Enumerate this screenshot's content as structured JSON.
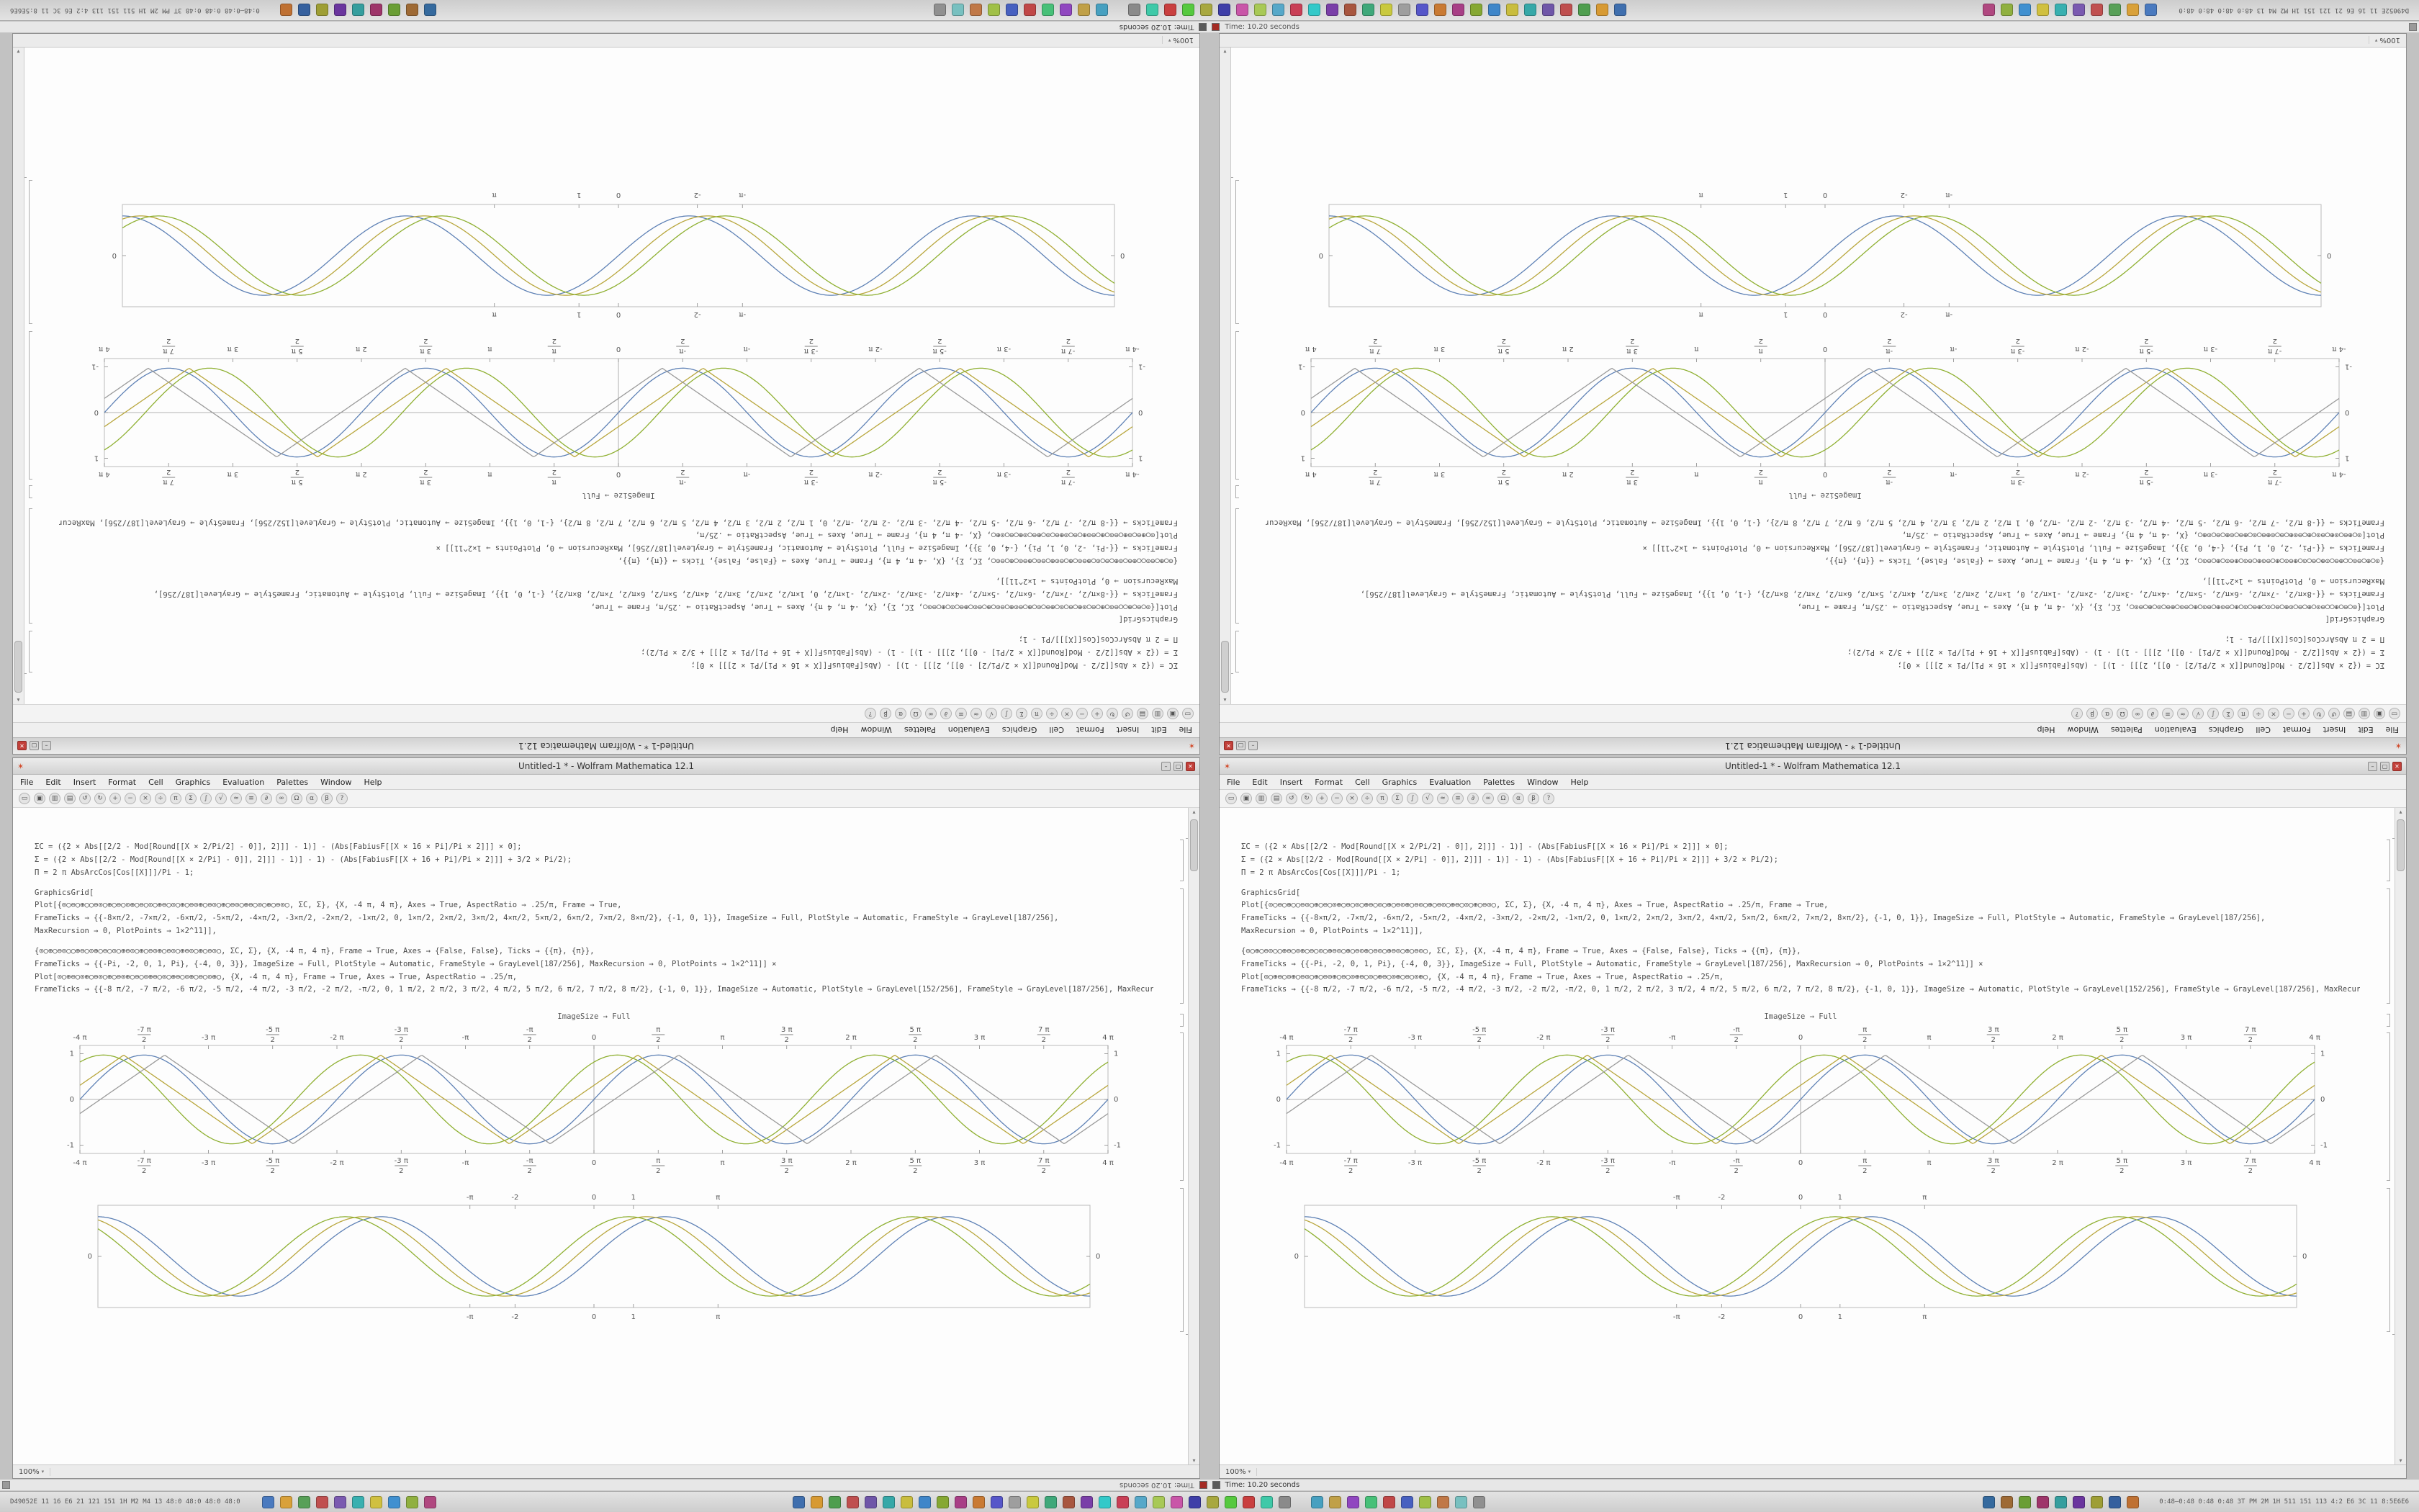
{
  "window": {
    "title": "Untitled-1 * - Wolfram Mathematica 12.1",
    "menu": [
      "File",
      "Edit",
      "Insert",
      "Format",
      "Cell",
      "Graphics",
      "Evaluation",
      "Palettes",
      "Window",
      "Help"
    ],
    "toolbar_icons": [
      "▭",
      "▣",
      "▥",
      "▤",
      "↺",
      "↻",
      "+",
      "−",
      "×",
      "÷",
      "π",
      "Σ",
      "∫",
      "√",
      "≈",
      "≡",
      "∂",
      "∞",
      "Ω",
      "α",
      "β",
      "?"
    ],
    "magnification": "100%",
    "code": {
      "defs": {
        "0": "ΣC = ({2 × Abs[[2/2 - Mod[Round[[X × 2/Pi/2] - 0]], 2]]] - 1)] - (Abs[FabiusF[[X × 16 × Pi]/Pi × 2]]] × 0];",
        "1": "Σ = ({2 × Abs[[2/2 - Mod[Round[[X × 2/Pi] - 0]], 2]]] - 1)] - 1) - (Abs[FabiusF[[X + 16 + Pi]/Pi × 2]]] + 3/2 × Pi/2);",
        "2": "Π = 2 π AbsArcCos[Cos[[X]]]/Pi - 1;"
      },
      "graphicsgrid": "GraphicsGrid[",
      "cell1": {
        "0": "Plot[{⊙○⊖○⊕○○⊖⊙○⊕○⊖○⊙⊕○⊖○⊙○⊕⊖○⊙○⊕○⊖⊙⊕○⊖⊙○⊕○⊖⊙○⊕⊖○⊙○⊕○⊖⊙○, ΣC, Σ}, {X, -4 π, 4 π}, Axes → True, AspectRatio → .25/π, Frame → True,",
        "1": "FrameTicks → {{-8×π/2, -7×π/2, -6×π/2, -5×π/2, -4×π/2, -3×π/2, -2×π/2, -1×π/2, 0, 1×π/2, 2×π/2, 3×π/2, 4×π/2, 5×π/2, 6×π/2, 7×π/2, 8×π/2}, {-1, 0, 1}}, ImageSize → Full, PlotStyle → Automatic, FrameStyle → GrayLevel[187/256],",
        "2": "MaxRecursion → 0, PlotPoints → 1×2^11]],"
      },
      "cell2": {
        "0": "{⊙○⊕○⊖⊙○○⊕⊖○⊙⊕○⊖○⊙○⊕⊖⊙○⊕○⊖⊙⊕○⊖⊙○⊕⊖⊙○⊕○⊖⊙○, ΣC, Σ}, {X, -4 π, 4 π}, Frame → True, Axes → {False, False}, Ticks → {{π}, {π}},",
        "1": "FrameTicks → {{-Pi, -2, 0, 1, Pi}, {-4, 0, 3}}, ImageSize → Full, PlotStyle → Automatic, FrameStyle → GrayLevel[187/256], MaxRecursion → 0, PlotPoints → 1×2^11]] ×",
        "2": "Plot[⊙○⊕⊖○⊙⊕○⊖⊙○⊕○⊖⊙⊕○⊖○⊙⊕⊖○⊙○⊕⊖○⊙⊕○⊖○⊙⊕○, {X, -4 π, 4 π}, Frame → True, Axes → True, AspectRatio → .25/π,",
        "3": "FrameTicks → {{-8 π/2, -7 π/2, -6 π/2, -5 π/2, -4 π/2, -3 π/2, -2 π/2, -π/2, 0, 1 π/2, 2 π/2, 3 π/2, 4 π/2, 5 π/2, 6 π/2, 7 π/2, 8 π/2}, {-1, 0, 1}}, ImageSize → Automatic, PlotStyle → GrayLevel[152/256], FrameStyle → GrayLevel[187/256], MaxRecursion → 0, PlotPoints → 1×2^11]]"
      },
      "label": "ImageSize → Full"
    }
  },
  "chart_data": {
    "dense": {
      "type": "line",
      "xmin": -12.566,
      "xmax": 12.566,
      "ymin": -1.18,
      "ymax": 1.18,
      "axes": true,
      "frame": "#bcbcbc",
      "xticks": [
        {
          "v": -12.566,
          "l": "-4 π"
        },
        {
          "v": -10.996,
          "l": "-7 π/2"
        },
        {
          "v": -9.425,
          "l": "-3 π"
        },
        {
          "v": -7.854,
          "l": "-5 π/2"
        },
        {
          "v": -6.283,
          "l": "-2 π"
        },
        {
          "v": -4.712,
          "l": "-3 π/2"
        },
        {
          "v": -3.1416,
          "l": "-π"
        },
        {
          "v": -1.5708,
          "l": "-π/2"
        },
        {
          "v": 0,
          "l": "0"
        },
        {
          "v": 1.5708,
          "l": "π/2"
        },
        {
          "v": 3.1416,
          "l": "π"
        },
        {
          "v": 4.712,
          "l": "3 π/2"
        },
        {
          "v": 6.283,
          "l": "2 π"
        },
        {
          "v": 7.854,
          "l": "5 π/2"
        },
        {
          "v": 9.425,
          "l": "3 π"
        },
        {
          "v": 10.996,
          "l": "7 π/2"
        },
        {
          "v": 12.566,
          "l": "4 π"
        }
      ],
      "yticks": [
        {
          "v": -1,
          "l": "-1"
        },
        {
          "v": 0,
          "l": "0"
        },
        {
          "v": 1,
          "l": "1"
        }
      ],
      "series": [
        {
          "name": "sine-blue",
          "kind": "sin",
          "freq": 1,
          "phase": 0,
          "color": "#5e81b5"
        },
        {
          "name": "triangle-olive",
          "kind": "tri",
          "freq": 1,
          "phase": 0.5,
          "color": "#b8a63c"
        },
        {
          "name": "sine-green",
          "kind": "sin",
          "freq": 1,
          "phase": 1.0,
          "color": "#8fb032"
        },
        {
          "name": "triangle-gray",
          "kind": "tri",
          "freq": 1,
          "phase": -0.5,
          "color": "#9a9a9a"
        }
      ]
    },
    "framed": {
      "type": "line",
      "xmin": -12.566,
      "xmax": 12.566,
      "ymin": -1.25,
      "ymax": 1.25,
      "axes": false,
      "frame": "#bcbcbc",
      "xticks": [
        {
          "v": -3.1416,
          "l": "-π"
        },
        {
          "v": -2,
          "l": "-2"
        },
        {
          "v": 0,
          "l": "0"
        },
        {
          "v": 1,
          "l": "1"
        },
        {
          "v": 3.1416,
          "l": "π"
        }
      ],
      "yticks": [
        {
          "v": 0,
          "l": "0"
        }
      ],
      "series": [
        {
          "name": "sine-blue",
          "kind": "sin",
          "freq": 0.875,
          "phase": 0,
          "color": "#5e81b5"
        },
        {
          "name": "sine-olive",
          "kind": "sin",
          "freq": 0.875,
          "phase": 0.4,
          "color": "#b8a63c"
        },
        {
          "name": "sine-green",
          "kind": "sin",
          "freq": 0.875,
          "phase": 0.8,
          "color": "#8fb032"
        }
      ]
    }
  },
  "strip": {
    "text": "Time: 10.20 seconds"
  },
  "taskbar": {
    "left_text": "D49052E 11 16 E6 21 121 151 1H M2 M4 13 48:0 48:0 48:0 48:0",
    "right_text": "0:48–0:48 0:48 0:48 3T PM 2M 1H 511 151 113 4:2 E6 3C 11 8:5E6E6",
    "group_a": [
      "#4a7abf",
      "#d9a13a",
      "#58a058",
      "#c05050",
      "#7a5ab0",
      "#38b0b0",
      "#d0c040",
      "#4090d0",
      "#90b040",
      "#b04880"
    ],
    "group_b": [
      "#3f6fae",
      "#d79a33",
      "#4f9e4f",
      "#bf4f4f",
      "#6f56a8",
      "#36a8a8",
      "#c9bd3e",
      "#3f86c9",
      "#86a833",
      "#a83f86",
      "#c97a33",
      "#5656c9",
      "#9e9e9e",
      "#c9c93e",
      "#3fa87a",
      "#a8563f",
      "#7a3fa8",
      "#33c9c9",
      "#c93f56",
      "#56a8c9",
      "#a8c956",
      "#c956a8",
      "#3f3fa8",
      "#a8a83f",
      "#56c93f",
      "#c93f3f",
      "#3fc9a8",
      "#8a8a8a"
    ],
    "group_c": [
      "#47a0c0",
      "#c0a047",
      "#9047c0",
      "#47c078",
      "#c04747",
      "#4760c0",
      "#a0c047",
      "#c07847",
      "#78c0c0",
      "#909090"
    ],
    "group_d": [
      "#356a9e",
      "#9e6a35",
      "#6a9e35",
      "#9e356a",
      "#359e9e",
      "#6a359e",
      "#9e9e35",
      "#35609e",
      "#bf7133"
    ]
  }
}
